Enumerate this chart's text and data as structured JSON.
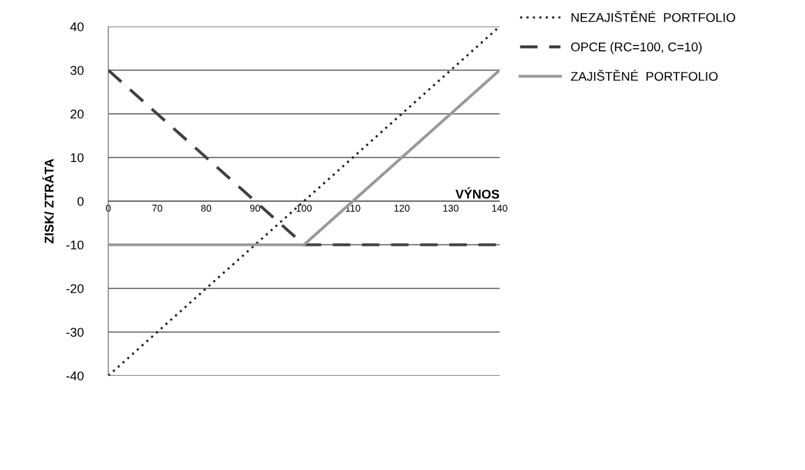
{
  "chart_data": {
    "type": "line",
    "xlabel": "VÝNOS",
    "ylabel": "ZISK/ ZTRÁTA",
    "categories": [
      "0",
      "70",
      "80",
      "90",
      "100",
      "110",
      "120",
      "130",
      "140"
    ],
    "series": [
      {
        "name": "NEZAJIŠTĚNÉ  PORTFOLIO",
        "color": "#222222",
        "line_style": "dotted",
        "values": [
          -40,
          -30,
          -20,
          -10,
          0,
          10,
          20,
          30,
          40
        ]
      },
      {
        "name": "OPCE (RC=100, C=10)",
        "color": "#404040",
        "line_style": "dashed",
        "values": [
          30,
          20,
          10,
          0,
          -10,
          -10,
          -10,
          -10,
          -10
        ]
      },
      {
        "name": "ZAJIŠTĚNÉ  PORTFOLIO",
        "color": "#999999",
        "line_style": "solid",
        "values": [
          -10,
          -10,
          -10,
          -10,
          -10,
          0,
          10,
          20,
          30
        ]
      }
    ],
    "ylim": [
      -40,
      40
    ],
    "yticks": [
      -40,
      -30,
      -20,
      -10,
      0,
      10,
      20,
      30,
      40
    ],
    "grid": "y",
    "legend": "top right",
    "marker": "none"
  }
}
